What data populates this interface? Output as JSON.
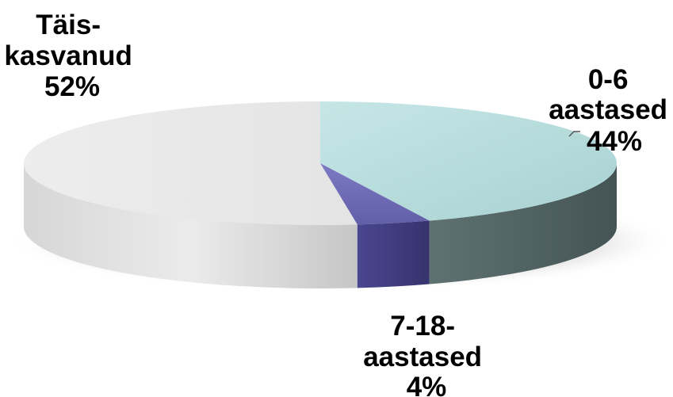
{
  "chart_data": {
    "type": "pie",
    "style": "3d-exploded-none",
    "slices": [
      {
        "key": "adults",
        "label_lines": [
          "Täis-",
          "kasvanud",
          "52%"
        ],
        "value": 52,
        "color": "#e9e9e9"
      },
      {
        "key": "age_0_6",
        "label_lines": [
          "0-6",
          "aastased",
          "44%"
        ],
        "value": 44,
        "color": "#b6dcdc"
      },
      {
        "key": "age_7_18",
        "label_lines": [
          "7-18-",
          "aastased",
          "4%"
        ],
        "value": 4,
        "color": "#6f6cb4"
      }
    ]
  }
}
